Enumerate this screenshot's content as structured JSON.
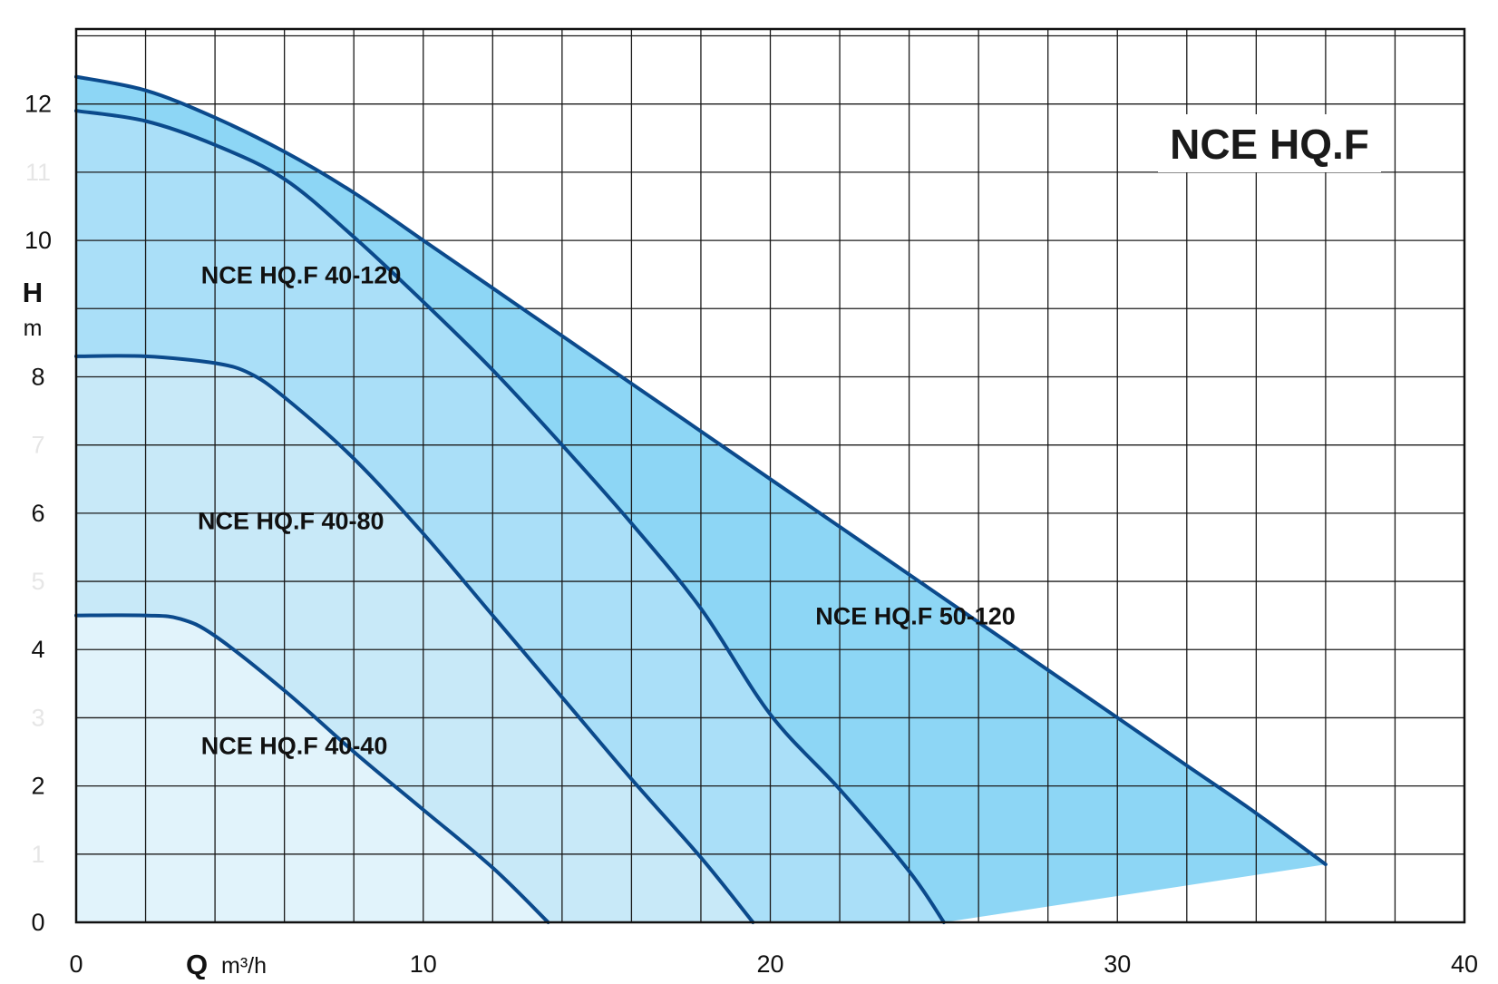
{
  "chart_data": {
    "type": "line",
    "title": "NCE HQ.F",
    "xlabel": "Q",
    "xunit": "m³/h",
    "ylabel": "H",
    "yunit": "m",
    "xlim": [
      0,
      40
    ],
    "ylim": [
      0,
      13.1
    ],
    "x_ticks": [
      0,
      10,
      20,
      30,
      40
    ],
    "y_ticks": [
      {
        "value": 0,
        "label": "0",
        "faint": false
      },
      {
        "value": 1,
        "label": "1",
        "faint": true
      },
      {
        "value": 2,
        "label": "2",
        "faint": false
      },
      {
        "value": 3,
        "label": "3",
        "faint": true
      },
      {
        "value": 4,
        "label": "4",
        "faint": false
      },
      {
        "value": 5,
        "label": "5",
        "faint": true
      },
      {
        "value": 6,
        "label": "6",
        "faint": false
      },
      {
        "value": 7,
        "label": "7",
        "faint": true
      },
      {
        "value": 8,
        "label": "8",
        "faint": false
      },
      {
        "value": 10,
        "label": "10",
        "faint": false
      },
      {
        "value": 11,
        "label": "11",
        "faint": true
      },
      {
        "value": 12,
        "label": "12",
        "faint": false
      }
    ],
    "grid": true,
    "fill_colors": [
      "#e1f3fb",
      "#c8e9f8",
      "#aadff8",
      "#8dd6f5"
    ],
    "line_color": "#0b4a8c",
    "series": [
      {
        "name": "NCE HQ.F 40-40",
        "x": [
          0,
          2,
          3,
          4,
          6,
          8,
          10,
          12,
          13.6
        ],
        "y": [
          4.5,
          4.5,
          4.45,
          4.2,
          3.4,
          2.5,
          1.65,
          0.8,
          0.0
        ]
      },
      {
        "name": "NCE HQ.F 40-80",
        "x": [
          0,
          2,
          4,
          5,
          6,
          8,
          10,
          12,
          14,
          16,
          18,
          19.5
        ],
        "y": [
          8.3,
          8.3,
          8.2,
          8.05,
          7.7,
          6.8,
          5.7,
          4.5,
          3.3,
          2.1,
          0.95,
          0.0
        ]
      },
      {
        "name": "NCE HQ.F 40-120",
        "x": [
          0,
          2,
          4,
          6,
          8,
          10,
          12,
          14,
          16,
          18,
          20,
          22,
          24,
          25
        ],
        "y": [
          11.9,
          11.75,
          11.4,
          10.9,
          10.05,
          9.1,
          8.1,
          7.0,
          5.85,
          4.6,
          3.05,
          1.95,
          0.75,
          0.0
        ]
      },
      {
        "name": "NCE HQ.F 50-120",
        "x": [
          0,
          2,
          4,
          6,
          8,
          10,
          12,
          14,
          16,
          18,
          20,
          22,
          24,
          26,
          28,
          30,
          32,
          34,
          36
        ],
        "y": [
          12.4,
          12.2,
          11.8,
          11.3,
          10.7,
          10.0,
          9.3,
          8.6,
          7.9,
          7.2,
          6.5,
          5.8,
          5.1,
          4.4,
          3.7,
          3.0,
          2.3,
          1.6,
          0.85
        ]
      }
    ],
    "label_positions": [
      {
        "series": "NCE HQ.F 40-40",
        "x": 3.6,
        "y": 2.6
      },
      {
        "series": "NCE HQ.F 40-80",
        "x": 3.5,
        "y": 5.9
      },
      {
        "series": "NCE HQ.F 40-120",
        "x": 3.6,
        "y": 9.5
      },
      {
        "series": "NCE HQ.F 50-120",
        "x": 21.3,
        "y": 4.5
      }
    ]
  }
}
